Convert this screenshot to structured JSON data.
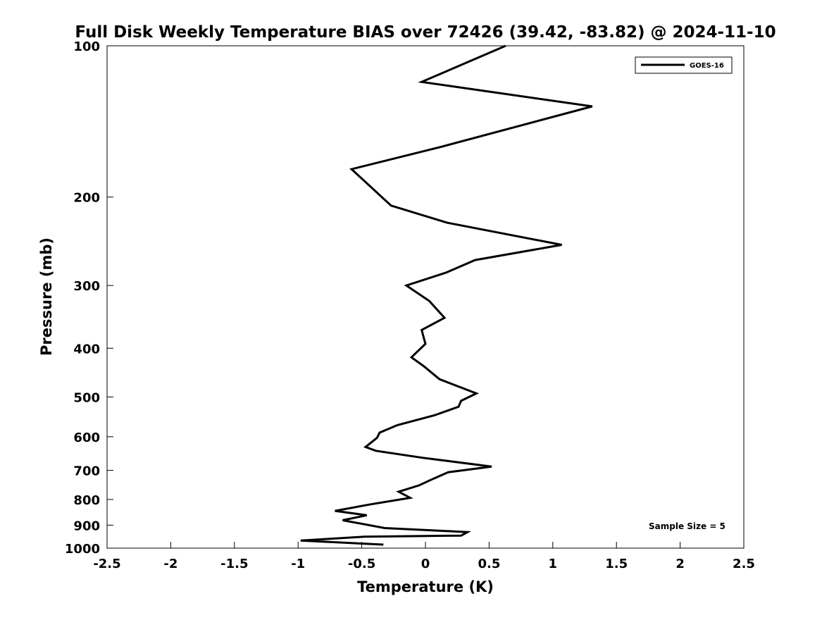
{
  "chart_data": {
    "type": "line",
    "title": "Full Disk Weekly Temperature BIAS over 72426 (39.42, -83.82) @ 2024-11-10",
    "xlabel": "Temperature (K)",
    "ylabel": "Pressure (mb)",
    "xlim": [
      -2.5,
      2.5
    ],
    "ylim": [
      100,
      1000
    ],
    "y_scale": "log",
    "y_reversed": true,
    "x_ticks": [
      "-2.5",
      "-2",
      "-1.5",
      "-1",
      "-0.5",
      "0",
      "0.5",
      "1",
      "1.5",
      "2",
      "2.5"
    ],
    "y_ticks": [
      "100",
      "200",
      "300",
      "400",
      "500",
      "600",
      "700",
      "800",
      "900",
      "1000"
    ],
    "grid": false,
    "legend_position": "top-right",
    "annotation": "Sample Size = 5",
    "line_color": "#000000",
    "series": [
      {
        "name": "GOES-16",
        "x": [
          0.63,
          -0.03,
          1.31,
          0.12,
          -0.58,
          -0.27,
          0.17,
          1.07,
          0.39,
          0.16,
          -0.15,
          0.03,
          0.15,
          -0.03,
          0.0,
          -0.11,
          -0.01,
          0.11,
          0.4,
          0.28,
          0.26,
          0.07,
          -0.22,
          -0.36,
          -0.38,
          -0.47,
          -0.39,
          -0.02,
          0.52,
          0.18,
          0.06,
          -0.05,
          -0.21,
          -0.12,
          -0.43,
          -0.71,
          -0.46,
          -0.65,
          -0.32,
          0.33,
          0.28,
          -0.48,
          -0.98,
          -0.33
        ],
        "y": [
          100,
          118,
          132,
          159,
          176,
          208,
          225,
          249,
          267,
          283,
          300,
          322,
          348,
          368,
          392,
          417,
          435,
          461,
          492,
          509,
          523,
          544,
          569,
          589,
          603,
          629,
          640,
          661,
          688,
          706,
          728,
          750,
          772,
          794,
          818,
          843,
          860,
          880,
          912,
          929,
          944,
          949,
          966,
          984
        ]
      }
    ]
  }
}
